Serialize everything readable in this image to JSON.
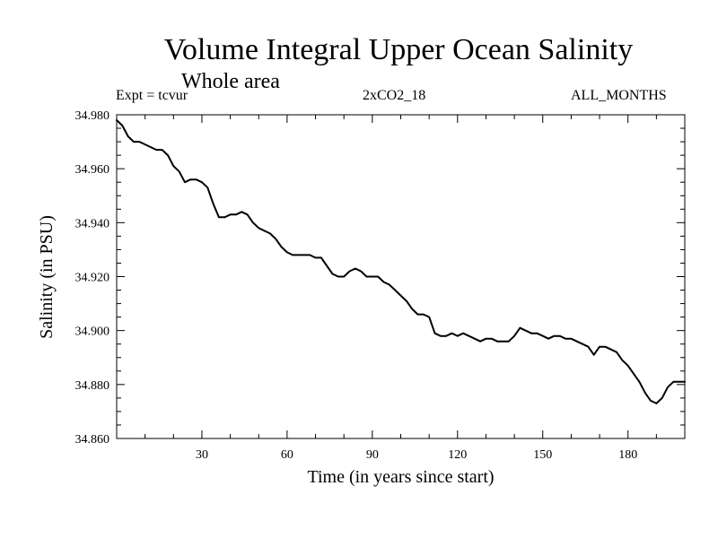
{
  "chart_data": {
    "type": "line",
    "title": "Volume Integral Upper Ocean Salinity",
    "subtitle": "Whole area",
    "header_left": "Expt = tcvur",
    "header_center": "2xCO2_18",
    "header_right": "ALL_MONTHS",
    "xlabel": "Time (in years since start)",
    "ylabel": "Salinity (in PSU)",
    "xlim": [
      0,
      200
    ],
    "ylim": [
      34.86,
      34.98
    ],
    "x_ticks": [
      30,
      60,
      90,
      120,
      150,
      180
    ],
    "x_tick_labels": [
      "30",
      "60",
      "90",
      "120",
      "150",
      "180"
    ],
    "y_ticks": [
      34.86,
      34.88,
      34.9,
      34.92,
      34.94,
      34.96,
      34.98
    ],
    "y_tick_labels": [
      "34.860",
      "34.880",
      "34.900",
      "34.920",
      "34.940",
      "34.960",
      "34.980"
    ],
    "grid": false,
    "series": [
      {
        "color": "#000000",
        "x": [
          0,
          2,
          4,
          6,
          8,
          10,
          12,
          14,
          16,
          18,
          20,
          22,
          24,
          26,
          28,
          30,
          32,
          34,
          36,
          38,
          40,
          42,
          44,
          46,
          48,
          50,
          52,
          54,
          56,
          58,
          60,
          62,
          64,
          66,
          68,
          70,
          72,
          74,
          76,
          78,
          80,
          82,
          84,
          86,
          88,
          90,
          92,
          94,
          96,
          98,
          100,
          102,
          104,
          106,
          108,
          110,
          112,
          114,
          116,
          118,
          120,
          122,
          124,
          126,
          128,
          130,
          132,
          134,
          136,
          138,
          140,
          142,
          144,
          146,
          148,
          150,
          152,
          154,
          156,
          158,
          160,
          162,
          164,
          166,
          168,
          170,
          172,
          174,
          176,
          178,
          180,
          182,
          184,
          186,
          188,
          190,
          192,
          194,
          196,
          198,
          200
        ],
        "y": [
          34.978,
          34.976,
          34.972,
          34.97,
          34.97,
          34.969,
          34.968,
          34.967,
          34.967,
          34.965,
          34.961,
          34.959,
          34.955,
          34.956,
          34.956,
          34.955,
          34.953,
          34.947,
          34.942,
          34.942,
          34.943,
          34.943,
          34.944,
          34.943,
          34.94,
          34.938,
          34.937,
          34.936,
          34.934,
          34.931,
          34.929,
          34.928,
          34.928,
          34.928,
          34.928,
          34.927,
          34.927,
          34.924,
          34.921,
          34.92,
          34.92,
          34.922,
          34.923,
          34.922,
          34.92,
          34.92,
          34.92,
          34.918,
          34.917,
          34.915,
          34.913,
          34.911,
          34.908,
          34.906,
          34.906,
          34.905,
          34.899,
          34.898,
          34.898,
          34.899,
          34.898,
          34.899,
          34.898,
          34.897,
          34.896,
          34.897,
          34.897,
          34.896,
          34.896,
          34.896,
          34.898,
          34.901,
          34.9,
          34.899,
          34.899,
          34.898,
          34.897,
          34.898,
          34.898,
          34.897,
          34.897,
          34.896,
          34.895,
          34.894,
          34.891,
          34.894,
          34.894,
          34.893,
          34.892,
          34.889,
          34.887,
          34.884,
          34.881,
          34.877,
          34.874,
          34.873,
          34.875,
          34.879,
          34.881,
          34.881,
          34.881
        ]
      }
    ]
  }
}
